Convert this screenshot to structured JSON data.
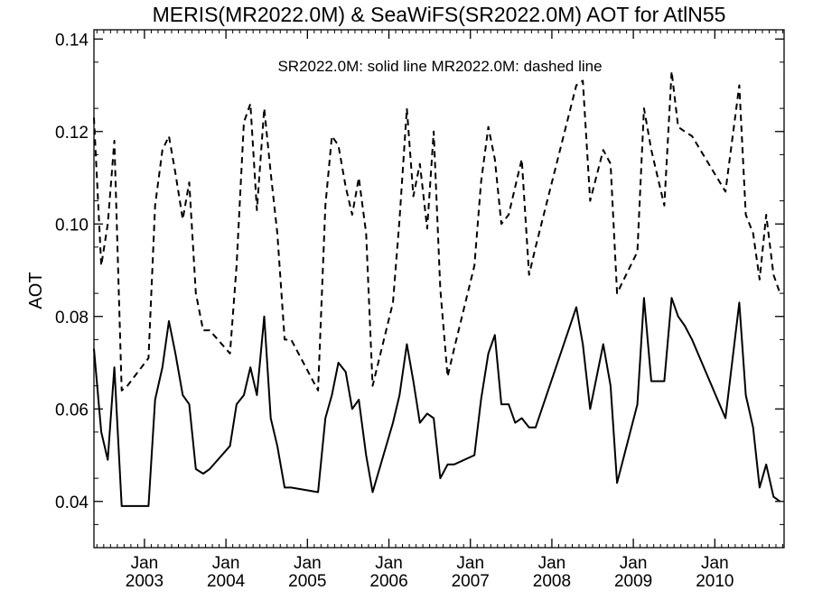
{
  "chart_data": {
    "type": "line",
    "title": "MERIS(MR2022.0M) & SeaWiFS(SR2022.0M)  AOT for AtlN55",
    "ylabel": "AOT",
    "xlabel": "",
    "annotation": "SR2022.0M: solid line   MR2022.0M: dashed line",
    "xlim": [
      2002.38,
      2010.85
    ],
    "ylim": [
      0.03,
      0.142
    ],
    "y_ticks": [
      {
        "value": 0.04,
        "label": "0.04"
      },
      {
        "value": 0.06,
        "label": "0.06"
      },
      {
        "value": 0.08,
        "label": "0.08"
      },
      {
        "value": 0.1,
        "label": "0.10"
      },
      {
        "value": 0.12,
        "label": "0.12"
      },
      {
        "value": 0.14,
        "label": "0.14"
      }
    ],
    "x_ticks": [
      {
        "value": 2003,
        "month": "Jan",
        "year": "2003"
      },
      {
        "value": 2004,
        "month": "Jan",
        "year": "2004"
      },
      {
        "value": 2005,
        "month": "Jan",
        "year": "2005"
      },
      {
        "value": 2006,
        "month": "Jan",
        "year": "2006"
      },
      {
        "value": 2007,
        "month": "Jan",
        "year": "2007"
      },
      {
        "value": 2008,
        "month": "Jan",
        "year": "2008"
      },
      {
        "value": 2009,
        "month": "Jan",
        "year": "2009"
      },
      {
        "value": 2010,
        "month": "Jan",
        "year": "2010"
      }
    ],
    "series": [
      {
        "line_style": "solid",
        "x": [
          2002.38,
          2002.47,
          2002.55,
          2002.63,
          2002.72,
          2002.79,
          2003.05,
          2003.13,
          2003.22,
          2003.3,
          2003.38,
          2003.47,
          2003.55,
          2003.63,
          2003.72,
          2003.8,
          2004.05,
          2004.13,
          2004.22,
          2004.3,
          2004.38,
          2004.47,
          2004.55,
          2004.63,
          2004.72,
          2004.8,
          2005.13,
          2005.22,
          2005.3,
          2005.38,
          2005.47,
          2005.55,
          2005.63,
          2005.72,
          2005.8,
          2006.05,
          2006.13,
          2006.22,
          2006.3,
          2006.38,
          2006.47,
          2006.55,
          2006.63,
          2006.72,
          2006.8,
          2007.05,
          2007.13,
          2007.22,
          2007.3,
          2007.38,
          2007.47,
          2007.55,
          2007.63,
          2007.72,
          2007.8,
          2008.3,
          2008.38,
          2008.47,
          2008.63,
          2008.72,
          2008.8,
          2009.05,
          2009.13,
          2009.22,
          2009.38,
          2009.47,
          2009.55,
          2009.63,
          2009.72,
          2010.13,
          2010.3,
          2010.38,
          2010.47,
          2010.55,
          2010.63,
          2010.72,
          2010.8
        ],
        "values": [
          0.073,
          0.055,
          0.049,
          0.069,
          0.039,
          0.039,
          0.039,
          0.062,
          0.069,
          0.079,
          0.072,
          0.063,
          0.061,
          0.047,
          0.046,
          0.047,
          0.052,
          0.061,
          0.063,
          0.069,
          0.063,
          0.08,
          0.058,
          0.052,
          0.043,
          0.043,
          0.042,
          0.058,
          0.063,
          0.07,
          0.068,
          0.06,
          0.062,
          0.05,
          0.042,
          0.057,
          0.063,
          0.074,
          0.066,
          0.057,
          0.059,
          0.058,
          0.045,
          0.048,
          0.048,
          0.05,
          0.062,
          0.072,
          0.076,
          0.061,
          0.061,
          0.057,
          0.058,
          0.056,
          0.056,
          0.082,
          0.074,
          0.06,
          0.074,
          0.065,
          0.044,
          0.061,
          0.084,
          0.066,
          0.066,
          0.084,
          0.08,
          0.078,
          0.075,
          0.058,
          0.083,
          0.063,
          0.056,
          0.043,
          0.048,
          0.041,
          0.04
        ]
      },
      {
        "line_style": "dashed",
        "x": [
          2002.38,
          2002.47,
          2002.55,
          2002.63,
          2002.72,
          2002.79,
          2003.05,
          2003.13,
          2003.22,
          2003.3,
          2003.38,
          2003.47,
          2003.55,
          2003.63,
          2003.72,
          2003.8,
          2004.05,
          2004.13,
          2004.22,
          2004.3,
          2004.38,
          2004.47,
          2004.55,
          2004.63,
          2004.72,
          2004.8,
          2005.13,
          2005.22,
          2005.3,
          2005.38,
          2005.47,
          2005.55,
          2005.63,
          2005.72,
          2005.8,
          2006.05,
          2006.13,
          2006.22,
          2006.3,
          2006.38,
          2006.47,
          2006.55,
          2006.63,
          2006.72,
          2006.8,
          2007.05,
          2007.13,
          2007.22,
          2007.3,
          2007.38,
          2007.47,
          2007.55,
          2007.63,
          2007.72,
          2007.8,
          2008.3,
          2008.38,
          2008.47,
          2008.63,
          2008.72,
          2008.8,
          2009.05,
          2009.13,
          2009.22,
          2009.38,
          2009.47,
          2009.55,
          2009.63,
          2009.72,
          2010.13,
          2010.3,
          2010.38,
          2010.47,
          2010.55,
          2010.63,
          2010.72,
          2010.8
        ],
        "values": [
          0.123,
          0.091,
          0.1,
          0.118,
          0.064,
          0.065,
          0.071,
          0.104,
          0.116,
          0.119,
          0.111,
          0.101,
          0.109,
          0.085,
          0.077,
          0.077,
          0.072,
          0.091,
          0.122,
          0.126,
          0.103,
          0.125,
          0.111,
          0.098,
          0.075,
          0.075,
          0.064,
          0.104,
          0.119,
          0.117,
          0.108,
          0.102,
          0.11,
          0.098,
          0.065,
          0.083,
          0.101,
          0.125,
          0.106,
          0.113,
          0.099,
          0.12,
          0.086,
          0.067,
          0.073,
          0.091,
          0.109,
          0.121,
          0.114,
          0.1,
          0.102,
          0.108,
          0.114,
          0.089,
          0.095,
          0.13,
          0.131,
          0.105,
          0.116,
          0.113,
          0.085,
          0.094,
          0.125,
          0.116,
          0.104,
          0.133,
          0.121,
          0.12,
          0.119,
          0.107,
          0.13,
          0.102,
          0.098,
          0.088,
          0.102,
          0.089,
          0.085
        ]
      }
    ]
  }
}
